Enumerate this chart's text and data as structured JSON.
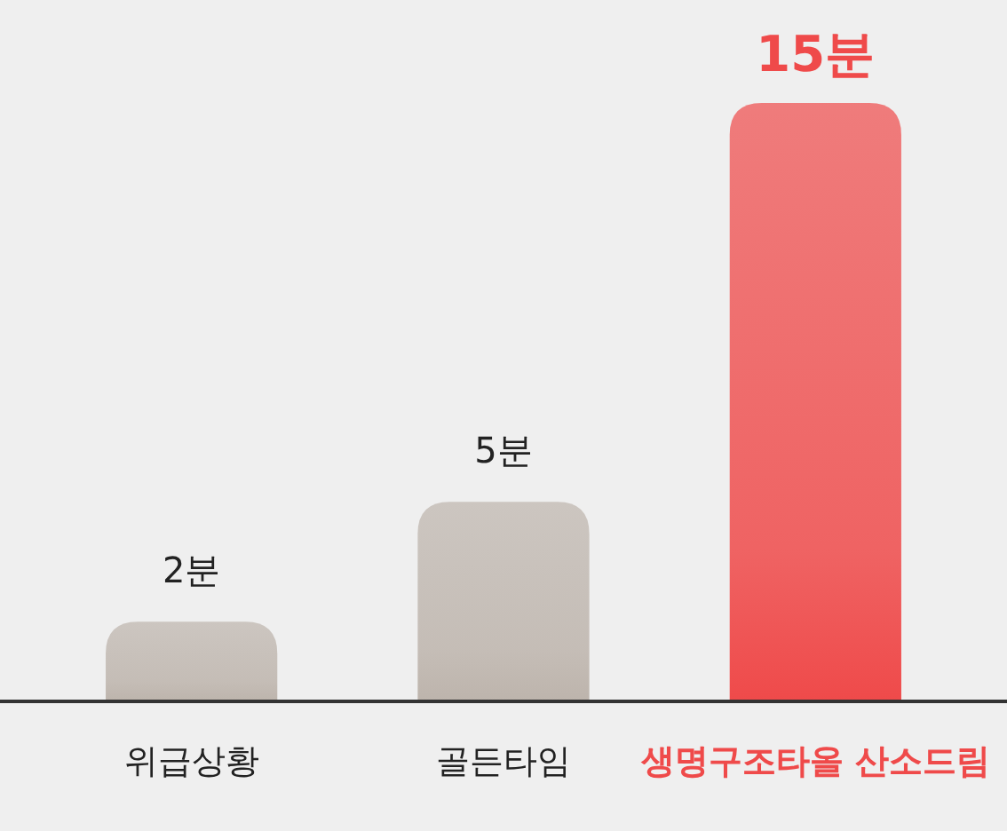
{
  "chart_data": {
    "type": "bar",
    "categories": [
      "위급상황",
      "골든타임",
      "생명구조타올 산소드림"
    ],
    "values": [
      2,
      5,
      15
    ],
    "value_labels": [
      "2분",
      "5분",
      "15분"
    ],
    "colors": [
      "#bdb4ac",
      "#bdb4ac",
      "#ef4a4a"
    ]
  }
}
